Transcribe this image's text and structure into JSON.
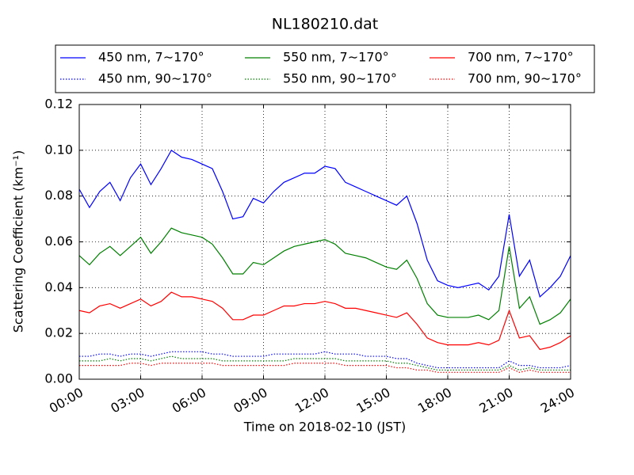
{
  "chart_data": {
    "type": "line",
    "title": "NL180210.dat",
    "xlabel": "Time on 2018-02-10 (JST)",
    "ylabel": "Scattering Coefficient (km⁻¹)",
    "x": [
      0,
      0.5,
      1,
      1.5,
      2,
      2.5,
      3,
      3.5,
      4,
      4.5,
      5,
      5.5,
      6,
      6.5,
      7,
      7.5,
      8,
      8.5,
      9,
      9.5,
      10,
      10.5,
      11,
      11.5,
      12,
      12.5,
      13,
      13.5,
      14,
      14.5,
      15,
      15.5,
      16,
      16.5,
      17,
      17.5,
      18,
      18.5,
      19,
      19.5,
      20,
      20.5,
      21,
      21.5,
      22,
      22.5,
      23,
      23.5,
      24
    ],
    "xlim": [
      0,
      24
    ],
    "xticks": [
      {
        "value": 0,
        "label": "00:00"
      },
      {
        "value": 3,
        "label": "03:00"
      },
      {
        "value": 6,
        "label": "06:00"
      },
      {
        "value": 9,
        "label": "09:00"
      },
      {
        "value": 12,
        "label": "12:00"
      },
      {
        "value": 15,
        "label": "15:00"
      },
      {
        "value": 18,
        "label": "18:00"
      },
      {
        "value": 21,
        "label": "21:00"
      },
      {
        "value": 24,
        "label": "24:00"
      }
    ],
    "ylim": [
      0,
      0.12
    ],
    "yticks": [
      {
        "value": 0,
        "label": "0.00"
      },
      {
        "value": 0.02,
        "label": "0.02"
      },
      {
        "value": 0.04,
        "label": "0.04"
      },
      {
        "value": 0.06,
        "label": "0.06"
      },
      {
        "value": 0.08,
        "label": "0.08"
      },
      {
        "value": 0.1,
        "label": "0.10"
      },
      {
        "value": 0.12,
        "label": "0.12"
      }
    ],
    "grid": true,
    "legend": "upper center",
    "legend_columns": 3,
    "series": [
      {
        "name": "450 nm, 7∼170°",
        "color": "#0000ff",
        "style": "solid",
        "values": [
          0.083,
          0.075,
          0.082,
          0.086,
          0.078,
          0.088,
          0.094,
          0.085,
          0.092,
          0.1,
          0.097,
          0.096,
          0.094,
          0.092,
          0.082,
          0.07,
          0.071,
          0.079,
          0.077,
          0.082,
          0.086,
          0.088,
          0.09,
          0.09,
          0.093,
          0.092,
          0.086,
          0.084,
          0.082,
          0.08,
          0.078,
          0.076,
          0.08,
          0.068,
          0.052,
          0.043,
          0.041,
          0.04,
          0.041,
          0.042,
          0.039,
          0.045,
          0.072,
          0.045,
          0.052,
          0.036,
          0.04,
          0.045,
          0.054
        ]
      },
      {
        "name": "450 nm, 90∼170°",
        "color": "#0000ff",
        "style": "dotted",
        "values": [
          0.01,
          0.01,
          0.011,
          0.011,
          0.01,
          0.011,
          0.011,
          0.01,
          0.011,
          0.012,
          0.012,
          0.012,
          0.012,
          0.011,
          0.011,
          0.01,
          0.01,
          0.01,
          0.01,
          0.011,
          0.011,
          0.011,
          0.011,
          0.011,
          0.012,
          0.011,
          0.011,
          0.011,
          0.01,
          0.01,
          0.01,
          0.009,
          0.009,
          0.007,
          0.006,
          0.005,
          0.005,
          0.005,
          0.005,
          0.005,
          0.005,
          0.005,
          0.008,
          0.006,
          0.006,
          0.005,
          0.005,
          0.005,
          0.006
        ]
      },
      {
        "name": "550 nm, 7∼170°",
        "color": "#008000",
        "style": "solid",
        "values": [
          0.054,
          0.05,
          0.055,
          0.058,
          0.054,
          0.058,
          0.062,
          0.055,
          0.06,
          0.066,
          0.064,
          0.063,
          0.062,
          0.059,
          0.053,
          0.046,
          0.046,
          0.051,
          0.05,
          0.053,
          0.056,
          0.058,
          0.059,
          0.06,
          0.061,
          0.059,
          0.055,
          0.054,
          0.053,
          0.051,
          0.049,
          0.048,
          0.052,
          0.044,
          0.033,
          0.028,
          0.027,
          0.027,
          0.027,
          0.028,
          0.026,
          0.03,
          0.058,
          0.031,
          0.036,
          0.024,
          0.026,
          0.029,
          0.035
        ]
      },
      {
        "name": "550 nm, 90∼170°",
        "color": "#008000",
        "style": "dotted",
        "values": [
          0.008,
          0.008,
          0.008,
          0.009,
          0.008,
          0.009,
          0.009,
          0.008,
          0.009,
          0.01,
          0.009,
          0.009,
          0.009,
          0.009,
          0.008,
          0.008,
          0.008,
          0.008,
          0.008,
          0.008,
          0.008,
          0.009,
          0.009,
          0.009,
          0.009,
          0.009,
          0.008,
          0.008,
          0.008,
          0.008,
          0.008,
          0.007,
          0.007,
          0.006,
          0.005,
          0.004,
          0.004,
          0.004,
          0.004,
          0.004,
          0.004,
          0.004,
          0.006,
          0.004,
          0.005,
          0.004,
          0.004,
          0.004,
          0.004
        ]
      },
      {
        "name": "700 nm, 7∼170°",
        "color": "#ff0000",
        "style": "solid",
        "values": [
          0.03,
          0.029,
          0.032,
          0.033,
          0.031,
          0.033,
          0.035,
          0.032,
          0.034,
          0.038,
          0.036,
          0.036,
          0.035,
          0.034,
          0.031,
          0.026,
          0.026,
          0.028,
          0.028,
          0.03,
          0.032,
          0.032,
          0.033,
          0.033,
          0.034,
          0.033,
          0.031,
          0.031,
          0.03,
          0.029,
          0.028,
          0.027,
          0.029,
          0.024,
          0.018,
          0.016,
          0.015,
          0.015,
          0.015,
          0.016,
          0.015,
          0.017,
          0.03,
          0.018,
          0.019,
          0.013,
          0.014,
          0.016,
          0.019
        ]
      },
      {
        "name": "700 nm, 90∼170°",
        "color": "#ff0000",
        "style": "dotted",
        "values": [
          0.006,
          0.006,
          0.006,
          0.006,
          0.006,
          0.007,
          0.007,
          0.006,
          0.007,
          0.007,
          0.007,
          0.007,
          0.007,
          0.007,
          0.006,
          0.006,
          0.006,
          0.006,
          0.006,
          0.006,
          0.006,
          0.007,
          0.007,
          0.007,
          0.007,
          0.007,
          0.006,
          0.006,
          0.006,
          0.006,
          0.006,
          0.005,
          0.005,
          0.004,
          0.004,
          0.003,
          0.003,
          0.003,
          0.003,
          0.003,
          0.003,
          0.003,
          0.005,
          0.003,
          0.004,
          0.003,
          0.003,
          0.003,
          0.003
        ]
      }
    ]
  }
}
